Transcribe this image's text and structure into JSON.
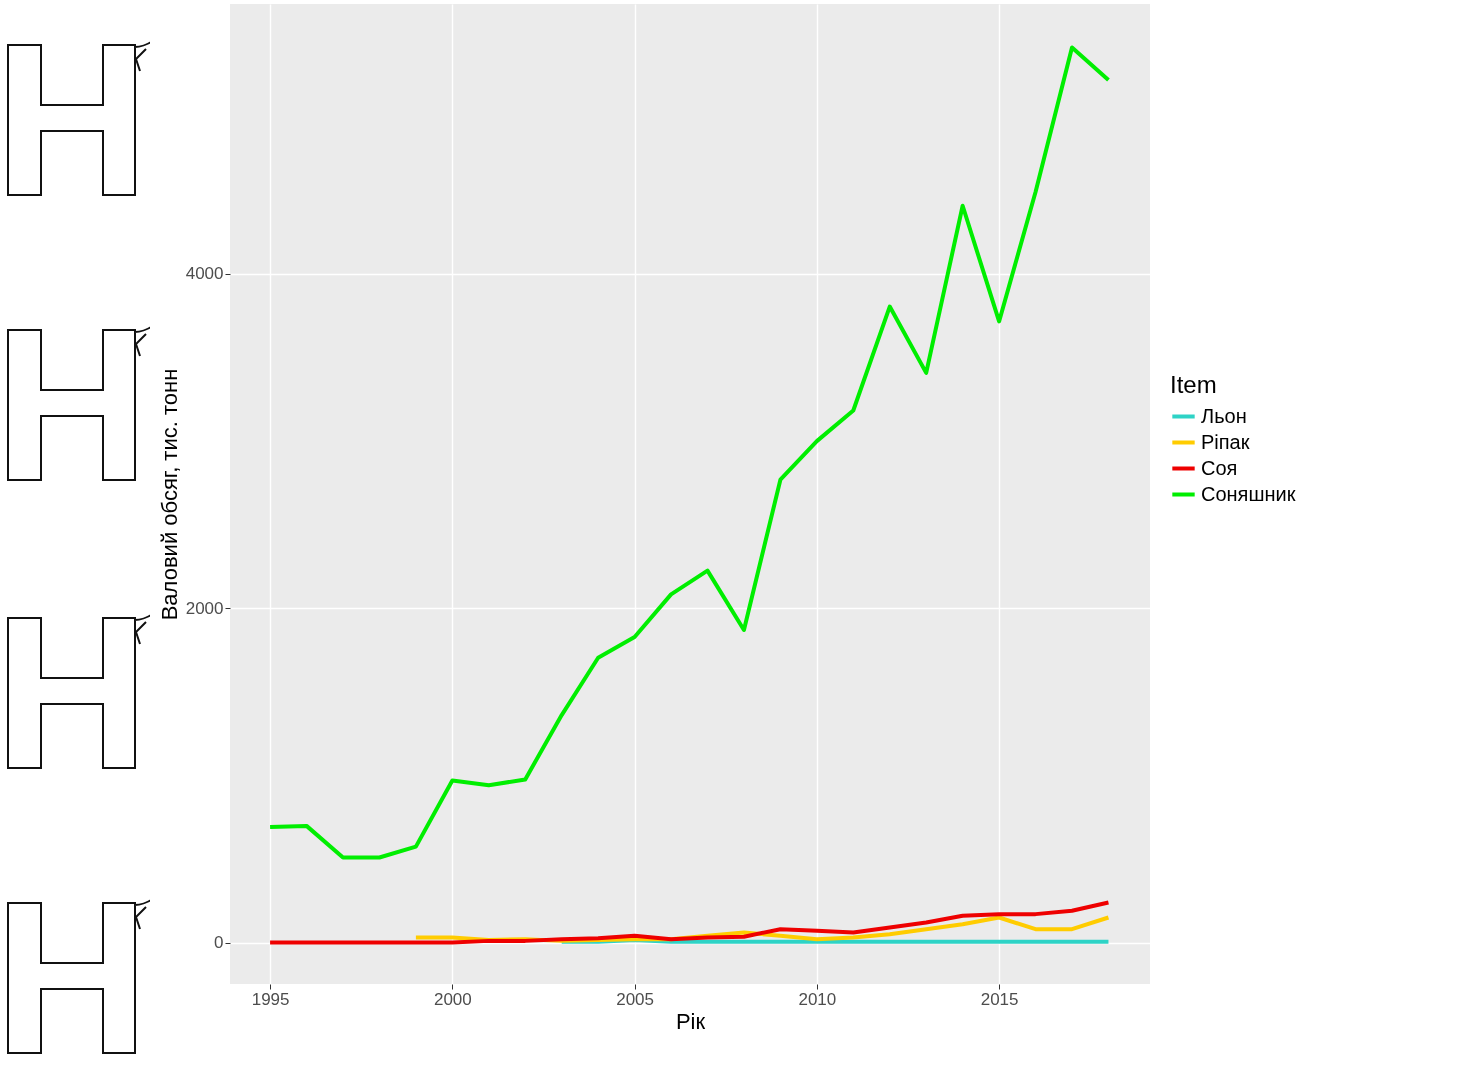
{
  "chart_data": {
    "type": "line",
    "xlabel": "Рік",
    "ylabel": "Валовий обсяг, тис. тонн",
    "legend_title": "Item",
    "x": [
      1995,
      1996,
      1997,
      1998,
      1999,
      2000,
      2001,
      2002,
      2003,
      2004,
      2005,
      2006,
      2007,
      2008,
      2009,
      2010,
      2011,
      2012,
      2013,
      2014,
      2015,
      2016,
      2017,
      2018
    ],
    "series": [
      {
        "name": "Льон",
        "color": "#2ed3c6",
        "values": [
          null,
          null,
          null,
          null,
          null,
          null,
          null,
          null,
          5,
          5,
          15,
          5,
          5,
          5,
          5,
          5,
          5,
          5,
          5,
          5,
          5,
          5,
          5,
          5
        ]
      },
      {
        "name": "Ріпак",
        "color": "#ffcc00",
        "values": [
          null,
          null,
          null,
          null,
          30,
          30,
          15,
          20,
          10,
          15,
          20,
          20,
          40,
          60,
          40,
          20,
          30,
          50,
          80,
          110,
          150,
          80,
          80,
          150
        ]
      },
      {
        "name": "Соя",
        "color": "#ee0000",
        "values": [
          0,
          0,
          0,
          0,
          0,
          0,
          10,
          10,
          20,
          25,
          40,
          20,
          30,
          35,
          80,
          70,
          60,
          90,
          120,
          160,
          170,
          170,
          190,
          240
        ]
      },
      {
        "name": "Соняшник",
        "color": "#00ee00",
        "values": [
          692,
          698,
          509,
          509,
          574,
          970,
          941,
          976,
          1361,
          1704,
          1828,
          2083,
          2225,
          1870,
          2769,
          3000,
          3183,
          3805,
          3408,
          4408,
          3716,
          4490,
          5355,
          5160
        ]
      }
    ],
    "xlim": [
      1993.9,
      2019.14
    ],
    "ylim": [
      -248,
      5615
    ],
    "xticks": [
      1995,
      2000,
      2005,
      2010,
      2015
    ],
    "yticks": [
      0,
      2000,
      4000
    ],
    "grid": true,
    "legend": "right",
    "line_style": "solid",
    "marker": "none"
  }
}
